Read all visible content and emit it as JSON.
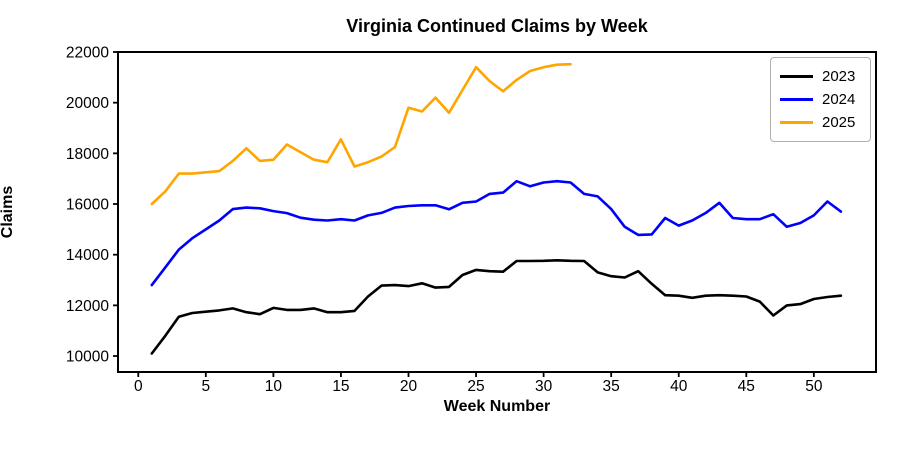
{
  "chart_data": {
    "type": "line",
    "title": "Virginia Continued Claims by Week",
    "xlabel": "Week Number",
    "ylabel": "Claims",
    "grid": false,
    "legend_position": "upper right",
    "legend_entries": [
      "2023",
      "2024",
      "2025"
    ],
    "x_tick_values": [
      0,
      5,
      10,
      15,
      20,
      25,
      30,
      35,
      40,
      45,
      50
    ],
    "y_tick_values": [
      10000,
      12000,
      14000,
      16000,
      18000,
      20000,
      22000
    ],
    "xlim": [
      -1.5,
      54.6
    ],
    "ylim": [
      9370,
      22000
    ],
    "x_start_week": 1,
    "series": [
      {
        "name": "2023",
        "color": "#000000",
        "values": [
          10100,
          10800,
          11550,
          11700,
          11750,
          11800,
          11880,
          11730,
          11650,
          11900,
          11820,
          11820,
          11880,
          11730,
          11730,
          11780,
          12350,
          12780,
          12800,
          12760,
          12870,
          12700,
          12730,
          13200,
          13400,
          13350,
          13330,
          13750,
          13750,
          13760,
          13780,
          13760,
          13750,
          13300,
          13150,
          13100,
          13350,
          12850,
          12400,
          12380,
          12300,
          12380,
          12400,
          12380,
          12350,
          12150,
          11600,
          12000,
          12050,
          12250,
          12330,
          12380
        ]
      },
      {
        "name": "2024",
        "color": "#0000ff",
        "values": [
          12800,
          13500,
          14200,
          14650,
          15000,
          15350,
          15800,
          15860,
          15830,
          15720,
          15640,
          15460,
          15380,
          15350,
          15400,
          15350,
          15550,
          15650,
          15860,
          15920,
          15950,
          15950,
          15790,
          16050,
          16100,
          16400,
          16450,
          16900,
          16700,
          16850,
          16900,
          16850,
          16400,
          16300,
          15800,
          15100,
          14780,
          14800,
          15450,
          15150,
          15350,
          15650,
          16050,
          15450,
          15400,
          15400,
          15600,
          15100,
          15250,
          15550,
          16100,
          15700
        ]
      },
      {
        "name": "2025",
        "color": "#ffa500",
        "values": [
          16000,
          16500,
          17200,
          17200,
          17250,
          17300,
          17700,
          18200,
          17700,
          17750,
          18350,
          18050,
          17750,
          17650,
          18550,
          17480,
          17650,
          17870,
          18250,
          19800,
          19650,
          20200,
          19600,
          20500,
          21400,
          20850,
          20450,
          20900,
          21250,
          21400,
          21500,
          21520
        ]
      }
    ]
  }
}
